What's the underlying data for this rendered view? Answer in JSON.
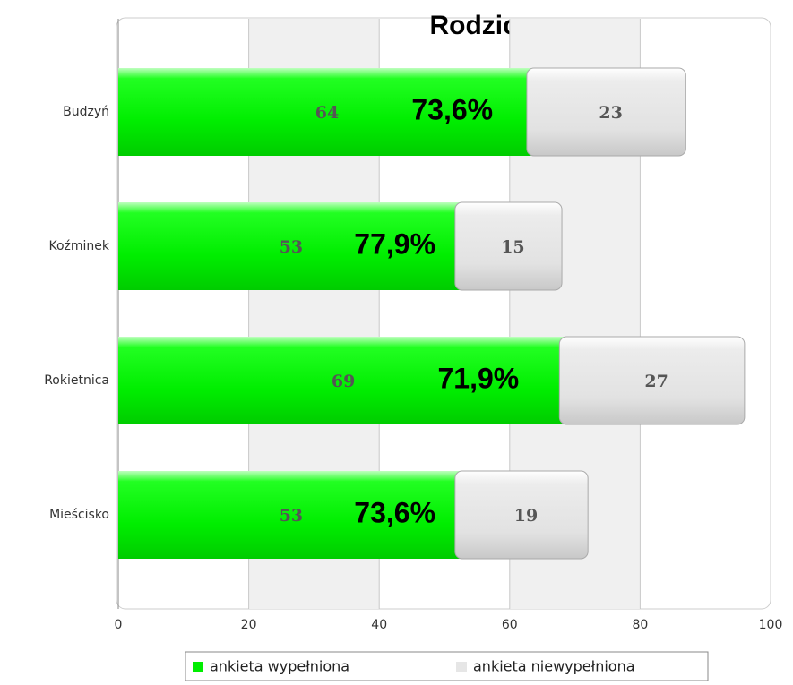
{
  "chart_data": {
    "type": "stacked_bar_horizontal",
    "title": "Rodzice",
    "categories": [
      "Budzyń",
      "Koźminek",
      "Rokietnica",
      "Mieścisko"
    ],
    "series": [
      {
        "name": "ankieta wypełniona",
        "color": "#00ee00",
        "values": [
          64,
          53,
          69,
          53
        ]
      },
      {
        "name": "ankieta niewypełniona",
        "color": "#e6e6e6",
        "values": [
          23,
          15,
          27,
          19
        ]
      }
    ],
    "annotations": [
      "73,6%",
      "77,9%",
      "71,9%",
      "73,6%"
    ],
    "xlim": [
      0,
      100
    ],
    "xticks": [
      0,
      20,
      40,
      60,
      80,
      100
    ],
    "grid": true,
    "legend": "bottom"
  }
}
